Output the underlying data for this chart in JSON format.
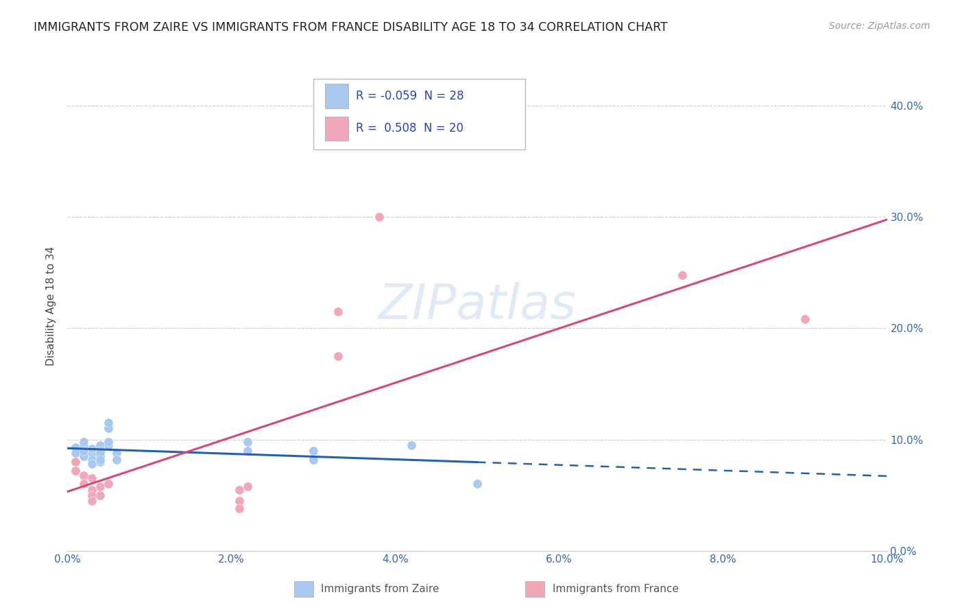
{
  "title": "IMMIGRANTS FROM ZAIRE VS IMMIGRANTS FROM FRANCE DISABILITY AGE 18 TO 34 CORRELATION CHART",
  "source": "Source: ZipAtlas.com",
  "xlabel_bottom": [
    "Immigrants from Zaire",
    "Immigrants from France"
  ],
  "ylabel": "Disability Age 18 to 34",
  "xlim": [
    0.0,
    0.1
  ],
  "ylim": [
    0.0,
    0.44
  ],
  "yticks": [
    0.0,
    0.1,
    0.2,
    0.3,
    0.4
  ],
  "xticks": [
    0.0,
    0.02,
    0.04,
    0.06,
    0.08,
    0.1
  ],
  "legend": {
    "zaire_R": "-0.059",
    "zaire_N": "28",
    "france_R": "0.508",
    "france_N": "20"
  },
  "color_zaire": "#a8c8f0",
  "color_france": "#f0a8b8",
  "color_zaire_line": "#2060b8",
  "color_france_line": "#d84870",
  "background": "#FFFFFF",
  "zaire_points": [
    [
      0.001,
      0.093
    ],
    [
      0.001,
      0.088
    ],
    [
      0.002,
      0.085
    ],
    [
      0.002,
      0.095
    ],
    [
      0.002,
      0.09
    ],
    [
      0.002,
      0.098
    ],
    [
      0.003,
      0.088
    ],
    [
      0.003,
      0.082
    ],
    [
      0.003,
      0.092
    ],
    [
      0.003,
      0.078
    ],
    [
      0.004,
      0.095
    ],
    [
      0.004,
      0.085
    ],
    [
      0.004,
      0.08
    ],
    [
      0.004,
      0.09
    ],
    [
      0.004,
      0.088
    ],
    [
      0.004,
      0.082
    ],
    [
      0.005,
      0.095
    ],
    [
      0.005,
      0.098
    ],
    [
      0.005,
      0.11
    ],
    [
      0.005,
      0.115
    ],
    [
      0.006,
      0.088
    ],
    [
      0.006,
      0.082
    ],
    [
      0.022,
      0.098
    ],
    [
      0.022,
      0.09
    ],
    [
      0.03,
      0.09
    ],
    [
      0.03,
      0.082
    ],
    [
      0.042,
      0.095
    ],
    [
      0.05,
      0.06
    ]
  ],
  "france_points": [
    [
      0.001,
      0.08
    ],
    [
      0.001,
      0.072
    ],
    [
      0.002,
      0.068
    ],
    [
      0.002,
      0.06
    ],
    [
      0.003,
      0.065
    ],
    [
      0.003,
      0.055
    ],
    [
      0.003,
      0.05
    ],
    [
      0.003,
      0.045
    ],
    [
      0.004,
      0.058
    ],
    [
      0.004,
      0.05
    ],
    [
      0.005,
      0.06
    ],
    [
      0.021,
      0.055
    ],
    [
      0.021,
      0.045
    ],
    [
      0.021,
      0.038
    ],
    [
      0.022,
      0.058
    ],
    [
      0.033,
      0.175
    ],
    [
      0.033,
      0.215
    ],
    [
      0.075,
      0.248
    ],
    [
      0.09,
      0.208
    ],
    [
      0.038,
      0.3
    ]
  ]
}
